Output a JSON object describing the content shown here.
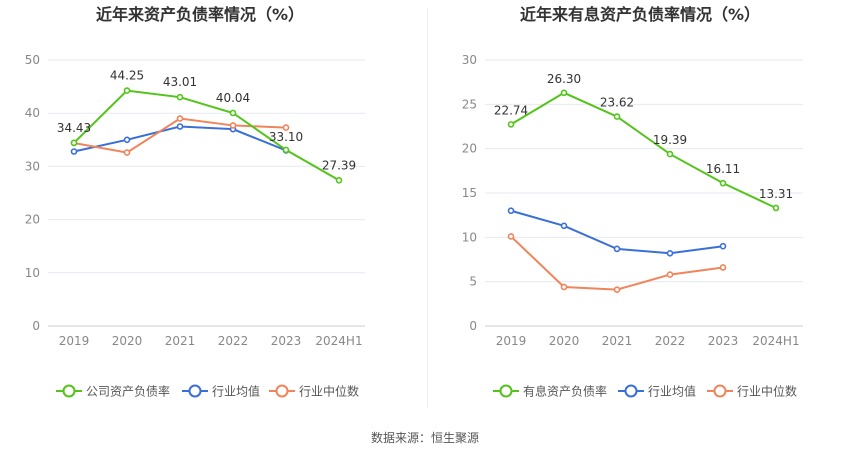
{
  "footer": {
    "source": "数据来源：恒生聚源"
  },
  "chart_data": [
    {
      "type": "line",
      "title": "近年来资产负债率情况（%）",
      "categories": [
        "2019",
        "2020",
        "2021",
        "2022",
        "2023",
        "2024H1"
      ],
      "ylim": [
        0,
        50
      ],
      "yticks": [
        0,
        10,
        20,
        30,
        40,
        50
      ],
      "grid": true,
      "legend_position": "bottom",
      "series": [
        {
          "name": "公司资产负债率",
          "color": "#52c41a",
          "show_labels": true,
          "values": [
            34.43,
            44.25,
            43.01,
            40.04,
            33.1,
            27.39
          ]
        },
        {
          "name": "行业均值",
          "color": "#3b6fd8",
          "show_labels": false,
          "values": [
            32.8,
            35.0,
            37.5,
            37.0,
            33.0,
            null
          ]
        },
        {
          "name": "行业中位数",
          "color": "#f0845b",
          "show_labels": false,
          "values": [
            34.4,
            32.6,
            39.0,
            37.7,
            37.3,
            null
          ]
        }
      ]
    },
    {
      "type": "line",
      "title": "近年来有息资产负债率情况（%）",
      "categories": [
        "2019",
        "2020",
        "2021",
        "2022",
        "2023",
        "2024H1"
      ],
      "ylim": [
        0,
        30
      ],
      "yticks": [
        0,
        5,
        10,
        15,
        20,
        25,
        30
      ],
      "grid": true,
      "legend_position": "bottom",
      "series": [
        {
          "name": "有息资产负债率",
          "color": "#52c41a",
          "show_labels": true,
          "values": [
            22.74,
            26.3,
            23.62,
            19.39,
            16.11,
            13.31
          ]
        },
        {
          "name": "行业均值",
          "color": "#3b6fd8",
          "show_labels": false,
          "values": [
            13.0,
            11.3,
            8.7,
            8.2,
            9.0,
            null
          ]
        },
        {
          "name": "行业中位数",
          "color": "#f0845b",
          "show_labels": false,
          "values": [
            10.1,
            4.4,
            4.1,
            5.8,
            6.6,
            null
          ]
        }
      ]
    }
  ]
}
